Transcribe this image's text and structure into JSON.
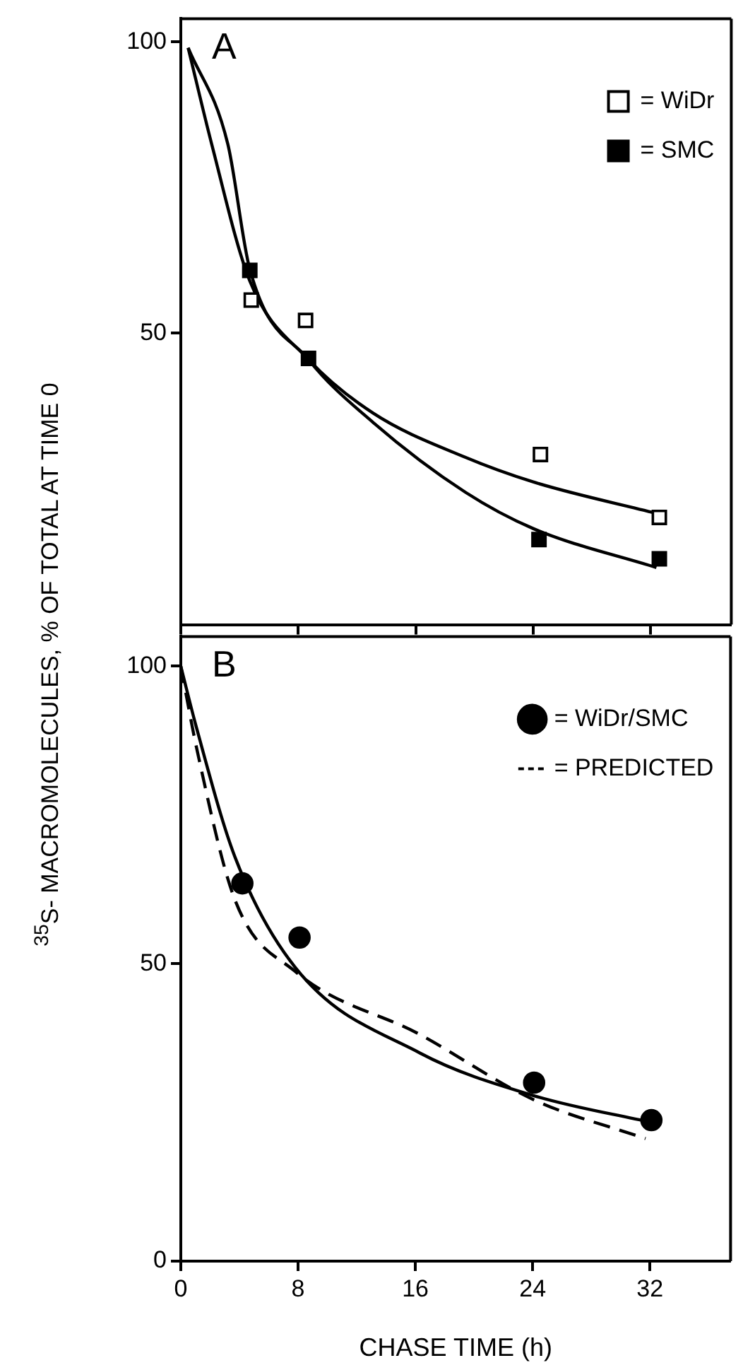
{
  "chart_data": [
    {
      "type": "scatter",
      "annotations": [
        "A"
      ],
      "ylabel": "$^{35}$S- MACROMOLECULES, % OF TOTAL AT TIME 0",
      "xlim": [
        0,
        37.5
      ],
      "xticks": [
        {
          "value": 0,
          "label": null
        },
        {
          "value": 8,
          "label": null
        },
        {
          "value": 16,
          "label": null
        },
        {
          "value": 24,
          "label": null
        },
        {
          "value": 32,
          "label": null
        }
      ],
      "ylim": [
        0,
        104
      ],
      "yticks": [
        50,
        100
      ],
      "tick_labels": "y",
      "legend": "top right",
      "grid": false,
      "series": [
        {
          "name": "= WiDr",
          "color": "#ffffff",
          "marker": "square",
          "x": [
            4.8,
            8.5,
            24.5,
            32.6
          ],
          "values": [
            55.7,
            52.2,
            29.2,
            18.4
          ]
        },
        {
          "name": "= SMC",
          "color": "#000000",
          "marker": "square",
          "x": [
            4.7,
            8.7,
            24.4,
            32.6
          ],
          "values": [
            60.8,
            45.7,
            14.6,
            11.3
          ]
        },
        {
          "type": "line",
          "color": "#000000",
          "marker": "none",
          "line_style": "solid",
          "x": [
            0.5,
            2.1,
            4.7,
            8.7,
            13.1,
            19.4,
            24,
            32.4
          ],
          "values": [
            99,
            82.5,
            59,
            45.5,
            36.3,
            28.7,
            24.5,
            19.1
          ]
        },
        {
          "type": "line",
          "color": "#000000",
          "marker": "none",
          "line_style": "solid",
          "x": [
            0.5,
            3.2,
            4.7,
            8.7,
            13.1,
            19.4,
            24,
            32.4
          ],
          "values": [
            99,
            82.5,
            61,
            45.5,
            34.7,
            22.7,
            16.5,
            9.8
          ]
        }
      ]
    },
    {
      "type": "scatter",
      "annotations": [
        "B"
      ],
      "xlabel": "CHASE TIME (h)",
      "xlim": [
        0,
        37.5
      ],
      "xticks": [
        0,
        8,
        16,
        24,
        32
      ],
      "ylim": [
        0,
        105
      ],
      "yticks": [
        0,
        50,
        100
      ],
      "legend": "top right",
      "grid": false,
      "series": [
        {
          "name": "= WiDr/SMC",
          "color": "#000000",
          "marker": "circle",
          "x": [
            4.2,
            8.1,
            24.1,
            32.1
          ],
          "values": [
            63.5,
            54.4,
            30,
            23.7
          ]
        },
        {
          "name": "= PREDICTED",
          "type": "line",
          "color": "#000000",
          "marker": "none",
          "line_style": "dashed",
          "x": [
            0,
            1.1,
            3.7,
            7.8,
            16.3,
            24.1,
            31.7
          ],
          "values": [
            100,
            86,
            60.7,
            48.7,
            38.1,
            27.1,
            20.6
          ]
        },
        {
          "type": "line",
          "color": "#000000",
          "marker": "none",
          "line_style": "solid",
          "x": [
            0,
            1.1,
            3.7,
            7.8,
            16.3,
            24.1,
            32.1
          ],
          "values": [
            100,
            89.4,
            67.9,
            49.4,
            35,
            27.8,
            23.3
          ]
        }
      ]
    }
  ]
}
